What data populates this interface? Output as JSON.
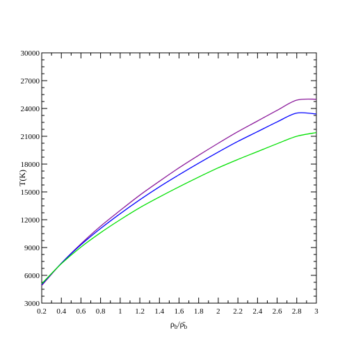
{
  "chart_data": {
    "type": "line",
    "title": "",
    "xlabel": {
      "main": "ρ",
      "sub": "b",
      "sep": "/",
      "main2": "ρ̄",
      "sub2": "b"
    },
    "ylabel": "T(K)",
    "xlim": [
      0.2,
      3.0
    ],
    "ylim": [
      3000,
      30000
    ],
    "xticks": [
      0.2,
      0.4,
      0.6,
      0.8,
      1,
      1.2,
      1.4,
      1.6,
      1.8,
      2,
      2.2,
      2.4,
      2.6,
      2.8,
      3
    ],
    "xtick_labels": [
      "0.2",
      "0.4",
      "0.6",
      "0.8",
      "1",
      "1.2",
      "1.4",
      "1.6",
      "1.8",
      "2",
      "2.2",
      "2.4",
      "2.6",
      "2.8",
      "3"
    ],
    "yticks": [
      3000,
      6000,
      9000,
      12000,
      15000,
      18000,
      21000,
      24000,
      27000,
      30000
    ],
    "ytick_labels": [
      "3000",
      "6000",
      "9000",
      "12000",
      "15000",
      "18000",
      "21000",
      "24000",
      "27000",
      "30000"
    ],
    "grid": false,
    "x": [
      0.2,
      0.4,
      0.6,
      0.8,
      1.0,
      1.2,
      1.4,
      1.6,
      1.8,
      2.0,
      2.2,
      2.4,
      2.6,
      2.8,
      3.0
    ],
    "series": [
      {
        "color": "#8B1A9B",
        "values": [
          4900,
          7300,
          9400,
          11300,
          13000,
          14650,
          16150,
          17600,
          18950,
          20250,
          21500,
          22650,
          23800,
          24900,
          25000
        ]
      },
      {
        "color": "#0000FF",
        "values": [
          5000,
          7300,
          9300,
          11050,
          12650,
          14150,
          15550,
          16850,
          18100,
          19300,
          20450,
          21500,
          22550,
          23500,
          23400
        ]
      },
      {
        "color": "#00E000",
        "values": [
          5100,
          7250,
          9050,
          10600,
          12000,
          13300,
          14450,
          15550,
          16600,
          17600,
          18500,
          19350,
          20200,
          21000,
          21400
        ]
      }
    ]
  }
}
